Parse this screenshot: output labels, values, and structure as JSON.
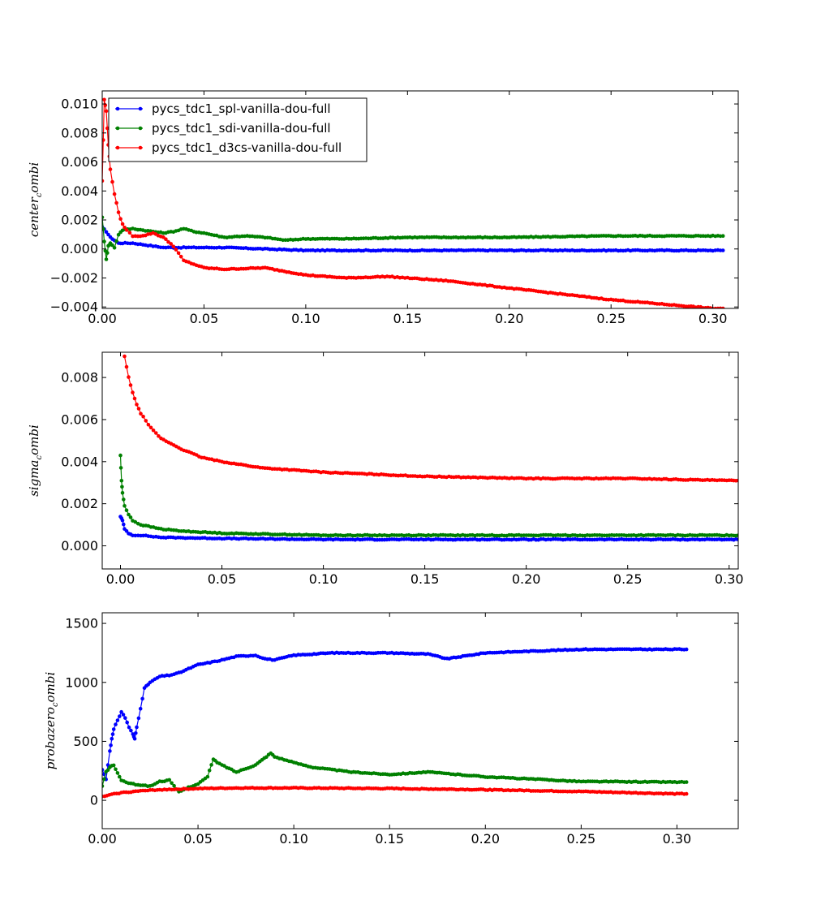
{
  "chart_data": [
    {
      "type": "line",
      "ylabel": "center_combi",
      "ylabel_main": "center",
      "ylabel_sub": "c",
      "ylabel_rest": "ombi",
      "xlim": [
        0.0,
        0.3125
      ],
      "ylim": [
        -0.0041,
        0.0109
      ],
      "xticks": [
        0.0,
        0.05,
        0.1,
        0.15,
        0.2,
        0.25,
        0.3
      ],
      "xtick_labels": [
        "0.00",
        "0.05",
        "0.10",
        "0.15",
        "0.20",
        "0.25",
        "0.30"
      ],
      "yticks": [
        -0.004,
        -0.002,
        0.0,
        0.002,
        0.004,
        0.006,
        0.008,
        0.01
      ],
      "ytick_labels": [
        "−0.004",
        "−0.002",
        "0.000",
        "0.002",
        "0.004",
        "0.006",
        "0.008",
        "0.010"
      ],
      "grid": false,
      "legend": "upper-left",
      "series": [
        {
          "name": "pycs_tdc1_spl-vanilla-dou-full",
          "color": "#0000ff",
          "x": [
            0.0,
            0.002,
            0.004,
            0.006,
            0.008,
            0.01,
            0.015,
            0.02,
            0.03,
            0.04,
            0.05,
            0.06,
            0.08,
            0.1,
            0.12,
            0.15,
            0.18,
            0.2,
            0.25,
            0.3,
            0.305
          ],
          "y": [
            0.0015,
            0.0012,
            0.0008,
            0.0006,
            0.0004,
            0.0004,
            0.0004,
            0.0003,
            0.0001,
            0.0001,
            0.0001,
            0.0001,
            0.0,
            -0.0001,
            -0.0001,
            -0.0001,
            -0.0001,
            -0.0001,
            -0.0001,
            -0.0001,
            -0.0001
          ]
        },
        {
          "name": "pycs_tdc1_sdi-vanilla-dou-full",
          "color": "#008000",
          "x": [
            0.0,
            0.001,
            0.002,
            0.003,
            0.004,
            0.006,
            0.008,
            0.01,
            0.015,
            0.02,
            0.025,
            0.03,
            0.035,
            0.04,
            0.045,
            0.05,
            0.06,
            0.07,
            0.08,
            0.09,
            0.1,
            0.12,
            0.15,
            0.2,
            0.25,
            0.3,
            0.305
          ],
          "y": [
            0.0022,
            0.0005,
            -0.0007,
            0.0002,
            0.0004,
            0.0001,
            0.001,
            0.0013,
            0.0014,
            0.0013,
            0.0012,
            0.0011,
            0.0012,
            0.0014,
            0.0012,
            0.0011,
            0.0008,
            0.0009,
            0.0008,
            0.0006,
            0.0007,
            0.0007,
            0.0008,
            0.0008,
            0.0009,
            0.0009,
            0.0009
          ]
        },
        {
          "name": "pycs_tdc1_d3cs-vanilla-dou-full",
          "color": "#ff0000",
          "x": [
            0.0,
            0.001,
            0.002,
            0.003,
            0.004,
            0.006,
            0.008,
            0.01,
            0.012,
            0.015,
            0.02,
            0.025,
            0.03,
            0.035,
            0.04,
            0.05,
            0.06,
            0.08,
            0.1,
            0.12,
            0.14,
            0.15,
            0.17,
            0.2,
            0.25,
            0.3,
            0.305
          ],
          "y": [
            0.0047,
            0.0103,
            0.0095,
            0.0072,
            0.0055,
            0.0038,
            0.0025,
            0.0017,
            0.0013,
            0.0009,
            0.0009,
            0.0011,
            0.0008,
            0.0002,
            -0.0008,
            -0.0013,
            -0.0014,
            -0.0013,
            -0.0018,
            -0.002,
            -0.0019,
            -0.002,
            -0.0022,
            -0.0027,
            -0.0035,
            -0.0041,
            -0.0041
          ]
        }
      ]
    },
    {
      "type": "line",
      "ylabel": "sigma_combi",
      "ylabel_main": "sigma",
      "ylabel_sub": "c",
      "ylabel_rest": "ombi",
      "xlim": [
        -0.009,
        0.3045
      ],
      "ylim": [
        -0.0011,
        0.0092
      ],
      "xticks": [
        0.0,
        0.05,
        0.1,
        0.15,
        0.2,
        0.25,
        0.3
      ],
      "xtick_labels": [
        "0.00",
        "0.05",
        "0.10",
        "0.15",
        "0.20",
        "0.25",
        "0.30"
      ],
      "yticks": [
        0.0,
        0.002,
        0.004,
        0.006,
        0.008
      ],
      "ytick_labels": [
        "0.000",
        "0.002",
        "0.004",
        "0.006",
        "0.008"
      ],
      "grid": false,
      "series": [
        {
          "name": "pycs_tdc1_spl-vanilla-dou-full",
          "color": "#0000ff",
          "x": [
            0.0,
            0.001,
            0.002,
            0.004,
            0.006,
            0.01,
            0.02,
            0.05,
            0.1,
            0.2,
            0.3,
            0.3045
          ],
          "y": [
            0.0014,
            0.0012,
            0.0008,
            0.0006,
            0.0005,
            0.0005,
            0.0004,
            0.00035,
            0.0003,
            0.0003,
            0.0003,
            0.0003
          ]
        },
        {
          "name": "pycs_tdc1_sdi-vanilla-dou-full",
          "color": "#008000",
          "x": [
            0.0,
            0.0005,
            0.001,
            0.002,
            0.004,
            0.006,
            0.01,
            0.015,
            0.02,
            0.03,
            0.05,
            0.1,
            0.2,
            0.3,
            0.3045
          ],
          "y": [
            0.0043,
            0.0031,
            0.0025,
            0.0019,
            0.0015,
            0.0012,
            0.001,
            0.0009,
            0.0008,
            0.0007,
            0.0006,
            0.0005,
            0.0005,
            0.0005,
            0.0005
          ]
        },
        {
          "name": "pycs_tdc1_d3cs-vanilla-dou-full",
          "color": "#ff0000",
          "x": [
            0.002,
            0.004,
            0.006,
            0.008,
            0.01,
            0.015,
            0.02,
            0.03,
            0.04,
            0.05,
            0.07,
            0.1,
            0.15,
            0.2,
            0.25,
            0.3,
            0.3045
          ],
          "y": [
            0.009,
            0.008,
            0.0073,
            0.0067,
            0.0063,
            0.0056,
            0.0051,
            0.0046,
            0.0042,
            0.004,
            0.0037,
            0.0035,
            0.0033,
            0.0032,
            0.0032,
            0.0031,
            0.0031
          ]
        }
      ]
    },
    {
      "type": "line",
      "ylabel": "probazero_combi",
      "ylabel_main": "probazero",
      "ylabel_sub": "c",
      "ylabel_rest": "ombi",
      "xlim": [
        0.0,
        0.332
      ],
      "ylim": [
        -240,
        1590
      ],
      "xticks": [
        0.0,
        0.05,
        0.1,
        0.15,
        0.2,
        0.25,
        0.3
      ],
      "xtick_labels": [
        "0.00",
        "0.05",
        "0.10",
        "0.15",
        "0.20",
        "0.25",
        "0.30"
      ],
      "yticks": [
        0,
        500,
        1000,
        1500
      ],
      "ytick_labels": [
        "0",
        "500",
        "1000",
        "1500"
      ],
      "grid": false,
      "series": [
        {
          "name": "pycs_tdc1_spl-vanilla-dou-full",
          "color": "#0000ff",
          "x": [
            0.0,
            0.002,
            0.004,
            0.005,
            0.006,
            0.008,
            0.01,
            0.012,
            0.014,
            0.016,
            0.017,
            0.018,
            0.02,
            0.022,
            0.025,
            0.03,
            0.035,
            0.04,
            0.05,
            0.06,
            0.07,
            0.08,
            0.085,
            0.09,
            0.1,
            0.12,
            0.15,
            0.17,
            0.18,
            0.2,
            0.25,
            0.3,
            0.305
          ],
          "y": [
            260,
            180,
            420,
            520,
            600,
            680,
            750,
            700,
            620,
            560,
            520,
            620,
            780,
            950,
            1000,
            1050,
            1060,
            1080,
            1150,
            1180,
            1220,
            1230,
            1200,
            1190,
            1230,
            1250,
            1250,
            1240,
            1200,
            1250,
            1280,
            1280,
            1280
          ]
        },
        {
          "name": "pycs_tdc1_sdi-vanilla-dou-full",
          "color": "#008000",
          "x": [
            0.0,
            0.002,
            0.004,
            0.006,
            0.008,
            0.01,
            0.015,
            0.02,
            0.025,
            0.03,
            0.035,
            0.04,
            0.045,
            0.05,
            0.055,
            0.058,
            0.06,
            0.065,
            0.07,
            0.08,
            0.088,
            0.09,
            0.1,
            0.11,
            0.12,
            0.13,
            0.15,
            0.17,
            0.2,
            0.25,
            0.3,
            0.305
          ],
          "y": [
            120,
            240,
            280,
            300,
            230,
            170,
            140,
            130,
            120,
            160,
            170,
            70,
            110,
            140,
            200,
            350,
            320,
            280,
            240,
            300,
            400,
            370,
            320,
            280,
            260,
            240,
            220,
            240,
            200,
            160,
            155,
            155
          ]
        },
        {
          "name": "pycs_tdc1_d3cs-vanilla-dou-full",
          "color": "#ff0000",
          "x": [
            0.0,
            0.005,
            0.01,
            0.02,
            0.03,
            0.04,
            0.05,
            0.07,
            0.1,
            0.15,
            0.18,
            0.2,
            0.25,
            0.3,
            0.305
          ],
          "y": [
            30,
            50,
            65,
            80,
            90,
            95,
            100,
            105,
            105,
            100,
            95,
            90,
            75,
            55,
            55
          ]
        }
      ]
    }
  ]
}
